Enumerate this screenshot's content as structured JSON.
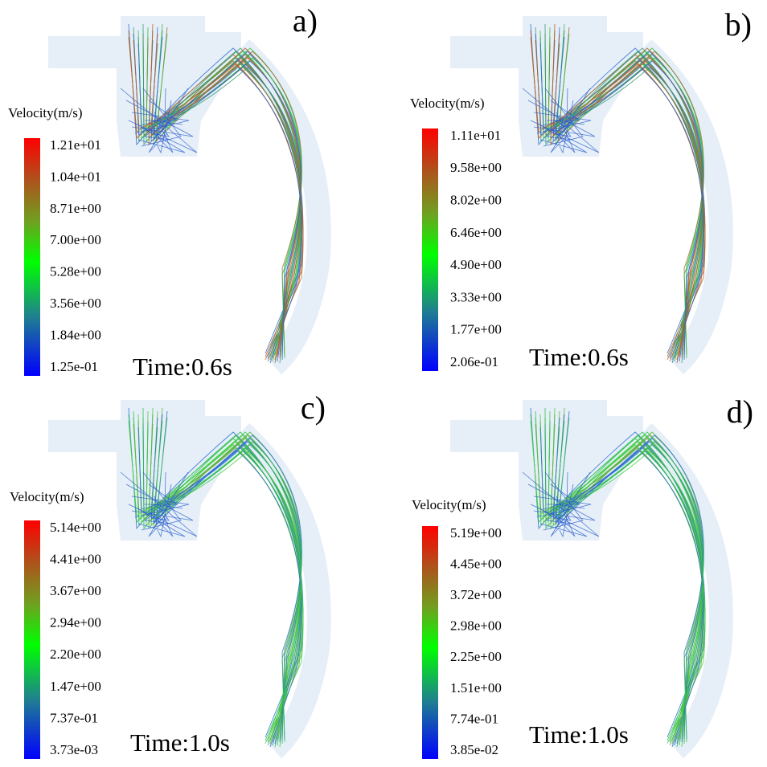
{
  "panels": [
    {
      "label": "a)",
      "colorbar": {
        "title": "Velocity(m/s)",
        "ticks": [
          "1.21e+01",
          "1.04e+01",
          "8.71e+00",
          "7.00e+00",
          "5.28e+00",
          "3.56e+00",
          "1.84e+00",
          "1.25e-01"
        ]
      },
      "time": "Time:0.6s"
    },
    {
      "label": "b)",
      "colorbar": {
        "title": "Velocity(m/s)",
        "ticks": [
          "1.11e+01",
          "9.58e+00",
          "8.02e+00",
          "6.46e+00",
          "4.90e+00",
          "3.33e+00",
          "1.77e+00",
          "2.06e-01"
        ]
      },
      "time": "Time:0.6s"
    },
    {
      "label": "c)",
      "colorbar": {
        "title": "Velocity(m/s)",
        "ticks": [
          "5.14e+00",
          "4.41e+00",
          "3.67e+00",
          "2.94e+00",
          "2.20e+00",
          "1.47e+00",
          "7.37e-01",
          "3.73e-03"
        ]
      },
      "time": "Time:1.0s"
    },
    {
      "label": "d)",
      "colorbar": {
        "title": "Velocity(m/s)",
        "ticks": [
          "5.19e+00",
          "4.45e+00",
          "3.72e+00",
          "2.98e+00",
          "2.25e+00",
          "1.51e+00",
          "7.74e-01",
          "3.85e-02"
        ]
      },
      "time": "Time:1.0s"
    }
  ]
}
